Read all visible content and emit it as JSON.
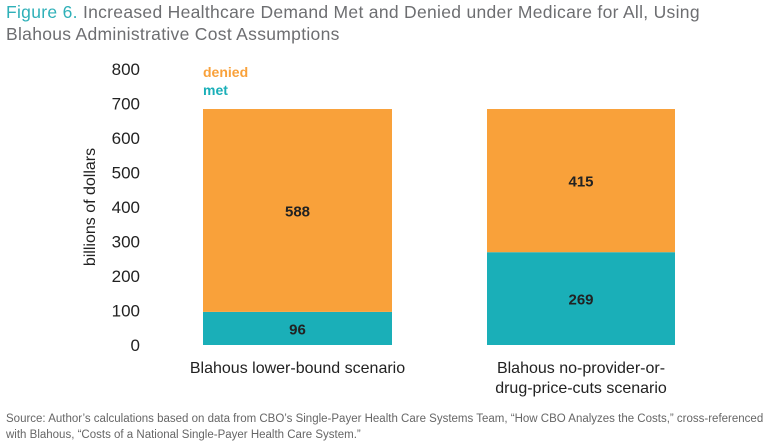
{
  "title": {
    "figure_label": "Figure 6.",
    "text": "Increased Healthcare Demand Met and Denied under Medicare for All, Using Blahous Administrative Cost Assumptions"
  },
  "source": "Source: Author’s calculations based on data from CBO’s Single-Payer Health Care Systems Team, “How CBO Analyzes the Costs,” cross-referenced with Blahous, “Costs of a National Single-Payer Health Care System.”",
  "colors": {
    "met": "#1aafb8",
    "denied": "#f9a13a",
    "title_accent": "#2fb0b8"
  },
  "chart_data": {
    "type": "bar",
    "stacked": true,
    "categories": [
      [
        "Blahous lower-bound scenario"
      ],
      [
        "Blahous no-provider-or-",
        "drug-price-cuts scenario"
      ]
    ],
    "series": [
      {
        "name": "met",
        "values": [
          96,
          269
        ]
      },
      {
        "name": "denied",
        "values": [
          588,
          415
        ]
      }
    ],
    "ylabel": "billions of dollars",
    "ylim": [
      0,
      800
    ],
    "yticks": [
      0,
      100,
      200,
      300,
      400,
      500,
      600,
      700,
      800
    ],
    "grid": false,
    "legend": "top-left"
  }
}
